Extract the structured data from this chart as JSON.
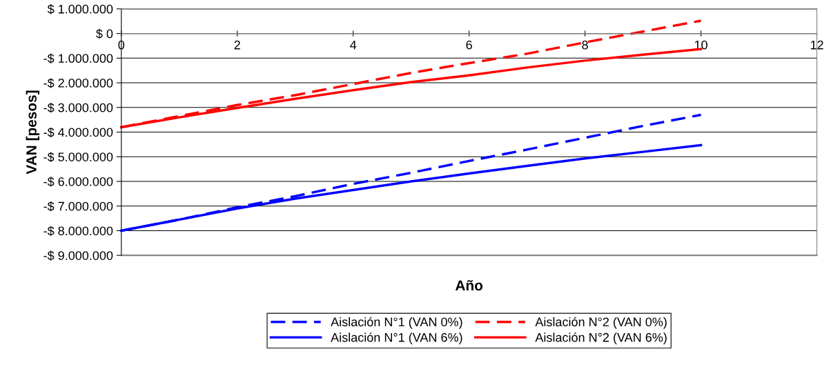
{
  "chart_data": {
    "type": "line",
    "xlabel": "Año",
    "ylabel": "VAN [pesos]",
    "x": [
      0,
      1,
      2,
      3,
      4,
      5,
      6,
      7,
      8,
      9,
      10
    ],
    "series": [
      {
        "name": "Aislación N°1 (VAN 0%)",
        "color": "#0000ff",
        "line_style": "dashed",
        "values": [
          -8000000,
          -7550000,
          -7050000,
          -6600000,
          -6100000,
          -5650000,
          -5170000,
          -4710000,
          -4230000,
          -3750000,
          -3300000
        ]
      },
      {
        "name": "Aislación N°1 (VAN 6%)",
        "color": "#0000ff",
        "line_style": "solid",
        "values": [
          -8000000,
          -7550000,
          -7100000,
          -6700000,
          -6350000,
          -6000000,
          -5680000,
          -5370000,
          -5070000,
          -4800000,
          -4530000
        ]
      },
      {
        "name": "Aislación N°2 (VAN 0%)",
        "color": "#ff0000",
        "line_style": "dashed",
        "values": [
          -3800000,
          -3350000,
          -2900000,
          -2500000,
          -2050000,
          -1600000,
          -1200000,
          -820000,
          -360000,
          80000,
          520000
        ]
      },
      {
        "name": "Aislación N°2 (VAN 6%)",
        "color": "#ff0000",
        "line_style": "solid",
        "values": [
          -3800000,
          -3400000,
          -3020000,
          -2650000,
          -2300000,
          -1970000,
          -1700000,
          -1380000,
          -1100000,
          -860000,
          -630000
        ]
      }
    ],
    "xlim": [
      0,
      12
    ],
    "xticks": [
      0,
      2,
      4,
      6,
      8,
      10,
      12
    ],
    "ylim": [
      -9000000,
      1000000
    ],
    "yticks": [
      {
        "value": 1000000,
        "label": "$ 1.000.000"
      },
      {
        "value": 0,
        "label": "$ 0"
      },
      {
        "value": -1000000,
        "label": "-$ 1.000.000"
      },
      {
        "value": -2000000,
        "label": "-$ 2.000.000"
      },
      {
        "value": -3000000,
        "label": "-$ 3.000.000"
      },
      {
        "value": -4000000,
        "label": "-$ 4.000.000"
      },
      {
        "value": -5000000,
        "label": "-$ 5.000.000"
      },
      {
        "value": -6000000,
        "label": "-$ 6.000.000"
      },
      {
        "value": -7000000,
        "label": "-$ 7.000.000"
      },
      {
        "value": -8000000,
        "label": "-$ 8.000.000"
      },
      {
        "value": -9000000,
        "label": "-$ 9.000.000"
      }
    ],
    "grid": "y",
    "legend": "bottom",
    "marker": "none"
  }
}
